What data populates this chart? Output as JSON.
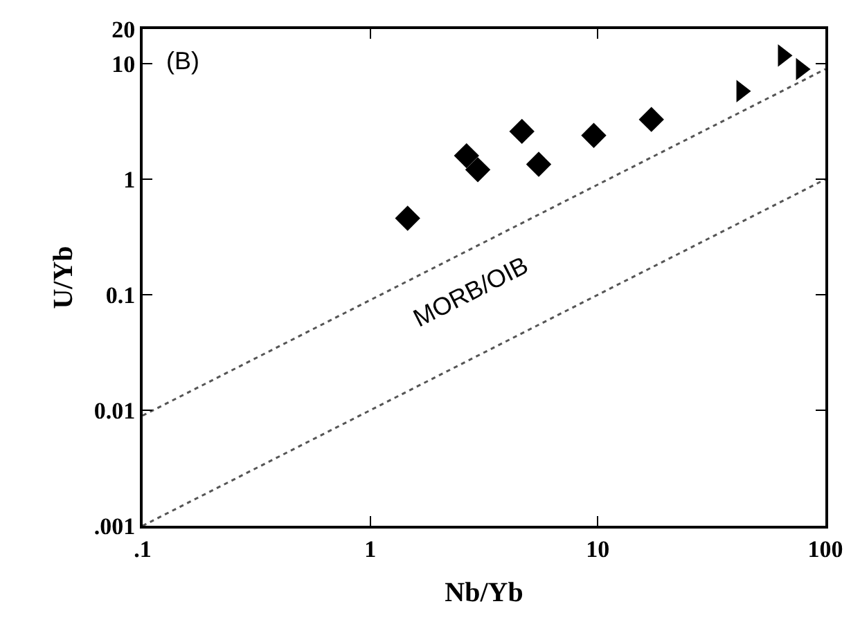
{
  "chart_data": {
    "type": "scatter",
    "xlabel": "Nb/Yb",
    "ylabel": "U/Yb",
    "log": "xy",
    "xlim": [
      0.1,
      100
    ],
    "xticks": [
      {
        "value": 0.1,
        "label": ".1"
      },
      1,
      10,
      100
    ],
    "ylim": [
      0.001,
      20
    ],
    "yticks": [
      {
        "value": 0.001,
        "label": ".001"
      },
      0.01,
      0.1,
      1,
      10,
      20
    ],
    "series": [
      {
        "marker": "diamond",
        "color": "#000000",
        "x": [
          1.46,
          2.65,
          2.97,
          4.64,
          5.5,
          9.6,
          17.2
        ],
        "values": [
          0.46,
          1.6,
          1.21,
          2.6,
          1.35,
          2.4,
          3.3
        ]
      },
      {
        "marker": "triangle",
        "color": "#000000",
        "x": [
          42.7,
          65,
          78
        ],
        "values": [
          5.8,
          11.8,
          9.0
        ]
      },
      {
        "type": "line",
        "line_style": "dotted",
        "color": "#555555",
        "x": [
          0.1,
          100
        ],
        "values": [
          0.009,
          9
        ]
      },
      {
        "type": "line",
        "line_style": "dotted",
        "color": "#555555",
        "x": [
          0.1,
          100
        ],
        "values": [
          0.001,
          1
        ]
      }
    ],
    "annotations": [
      "(B)",
      "MORB/OIB"
    ]
  }
}
